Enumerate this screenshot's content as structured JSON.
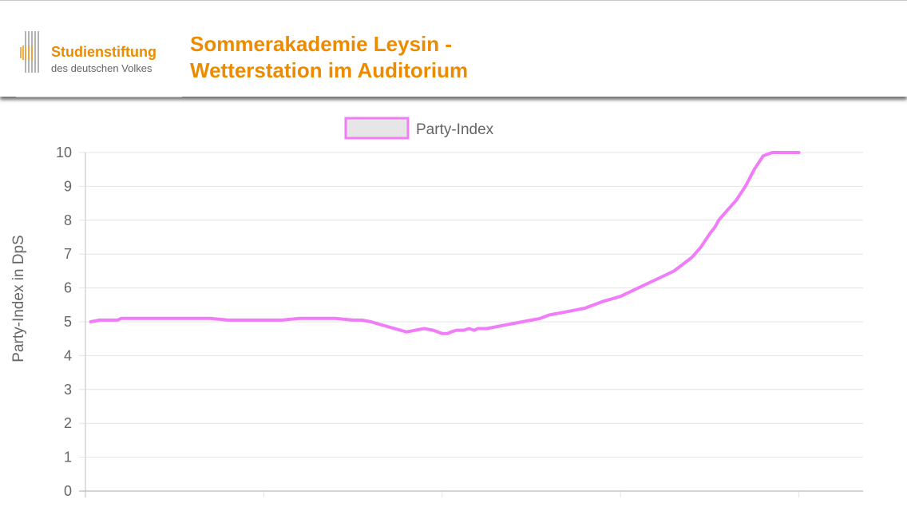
{
  "header": {
    "logo_line1": "Studienstiftung",
    "logo_line2": "des deutschen Volkes",
    "title_line1": "Sommerakademie Leysin -",
    "title_line2": "Wetterstation im Auditorium"
  },
  "colors": {
    "brand_orange": "#ec8b00",
    "series_line": "#f07cf7",
    "legend_fill": "#e6e6e6",
    "grid": "#e4e4e4",
    "tick_text": "#666666"
  },
  "chart_data": {
    "type": "line",
    "legend": {
      "position": "top",
      "entries": [
        "Party-Index"
      ]
    },
    "ylabel": "Party-Index in DpS",
    "ylim": [
      0,
      10
    ],
    "yticks": [
      0,
      1,
      2,
      3,
      4,
      5,
      6,
      7,
      8,
      9,
      10
    ],
    "grid": true,
    "x_range_hours": [
      8,
      12.36
    ],
    "series": [
      {
        "name": "Party-Index",
        "x": [
          8.03,
          8.08,
          8.18,
          8.2,
          8.25,
          8.3,
          8.35,
          8.4,
          8.5,
          8.6,
          8.7,
          8.8,
          8.9,
          8.95,
          9.0,
          9.1,
          9.2,
          9.3,
          9.4,
          9.5,
          9.55,
          9.6,
          9.7,
          9.8,
          9.9,
          9.95,
          10.0,
          10.03,
          10.05,
          10.08,
          10.1,
          10.12,
          10.15,
          10.18,
          10.2,
          10.25,
          10.3,
          10.35,
          10.4,
          10.45,
          10.5,
          10.55,
          10.6,
          10.7,
          10.8,
          10.9,
          11.0,
          11.1,
          11.2,
          11.3,
          11.35,
          11.4,
          11.45,
          11.5,
          11.53,
          11.55,
          11.6,
          11.65,
          11.7,
          11.75,
          11.8,
          11.85,
          11.9,
          11.93,
          11.95,
          11.98,
          12.0
        ],
        "y": [
          5.0,
          5.05,
          5.05,
          5.1,
          5.1,
          5.1,
          5.1,
          5.1,
          5.1,
          5.1,
          5.1,
          5.05,
          5.05,
          5.05,
          5.05,
          5.05,
          5.1,
          5.1,
          5.1,
          5.05,
          5.05,
          5.0,
          4.85,
          4.7,
          4.8,
          4.75,
          4.65,
          4.65,
          4.7,
          4.75,
          4.75,
          4.75,
          4.8,
          4.75,
          4.8,
          4.8,
          4.85,
          4.9,
          4.95,
          5.0,
          5.05,
          5.1,
          5.2,
          5.3,
          5.4,
          5.6,
          5.75,
          6.0,
          6.25,
          6.5,
          6.7,
          6.9,
          7.2,
          7.6,
          7.8,
          8.0,
          8.3,
          8.6,
          9.0,
          9.5,
          9.9,
          10.0,
          10.0,
          10.0,
          10.0,
          10.0,
          10.0
        ]
      }
    ]
  }
}
